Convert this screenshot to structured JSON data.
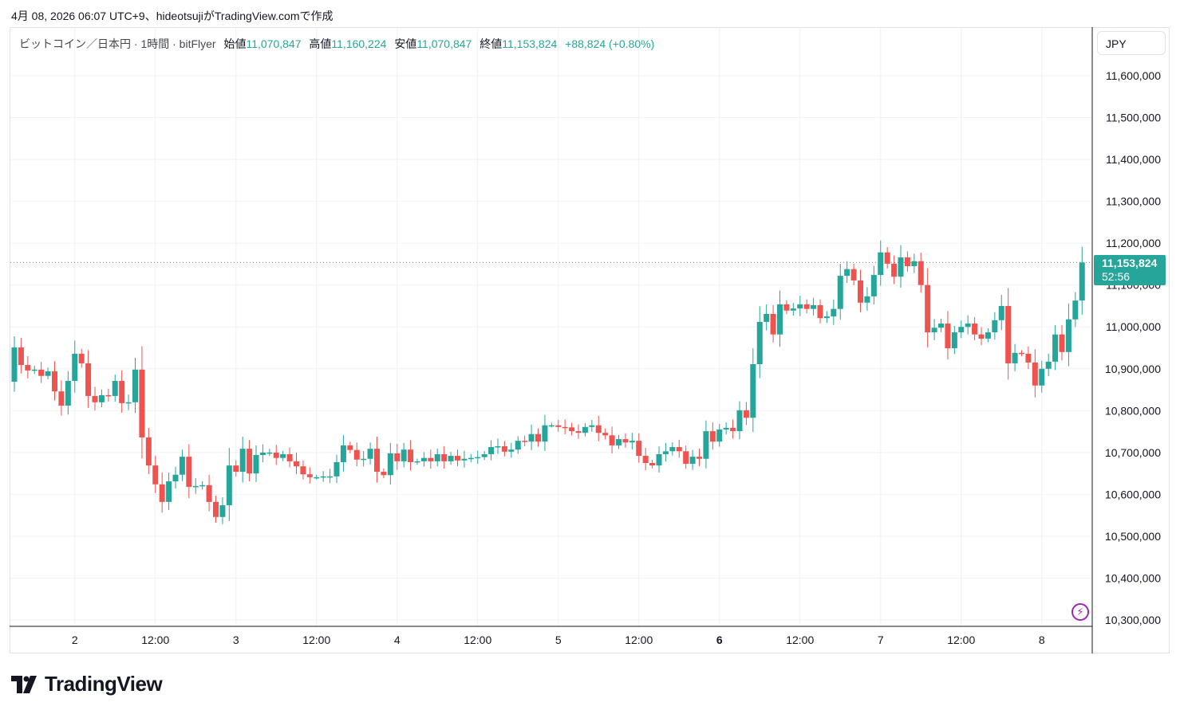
{
  "caption": "4月 08, 2026 06:07 UTC+9、hideotsujiがTradingView.comで作成",
  "legend": {
    "symbol": "ビットコイン／日本円 · 1時間 · bitFlyer",
    "open_label": "始値",
    "open": "11,070,847",
    "high_label": "高値",
    "high": "11,160,224",
    "low_label": "安値",
    "low": "11,070,847",
    "close_label": "終値",
    "close": "11,153,824",
    "change": "+88,824 (+0.80%)"
  },
  "currency_button": "JPY",
  "last_price": {
    "value": "11,153,824",
    "countdown": "52:56"
  },
  "brand": "TradingView",
  "colors": {
    "up": "#26a69a",
    "down": "#ef5350",
    "grid": "#eef2f6",
    "crosshair_line": "#26a69a"
  },
  "chart_data": {
    "type": "candlestick",
    "title": "ビットコイン／日本円 · 1時間 · bitFlyer",
    "interval": "1h",
    "unit": "JPY",
    "first_open": 10869000,
    "closes_thousands": [
      10951,
      10909,
      10896,
      10898,
      10883,
      10894,
      10846,
      10812,
      10871,
      10936,
      10913,
      10835,
      10820,
      10837,
      10835,
      10871,
      10818,
      10820,
      10898,
      10736,
      10669,
      10624,
      10582,
      10631,
      10647,
      10690,
      10618,
      10620,
      10622,
      10582,
      10546,
      10574,
      10669,
      10654,
      10709,
      10650,
      10694,
      10700,
      10700,
      10687,
      10696,
      10679,
      10667,
      10648,
      10641,
      10641,
      10643,
      10643,
      10677,
      10717,
      10706,
      10683,
      10685,
      10709,
      10654,
      10646,
      10698,
      10679,
      10707,
      10677,
      10679,
      10687,
      10679,
      10696,
      10679,
      10692,
      10681,
      10685,
      10687,
      10689,
      10696,
      10713,
      10715,
      10702,
      10707,
      10728,
      10726,
      10744,
      10726,
      10765,
      10765,
      10761,
      10760,
      10751,
      10747,
      10761,
      10765,
      10747,
      10741,
      10717,
      10732,
      10724,
      10728,
      10692,
      10675,
      10669,
      10696,
      10703,
      10713,
      10703,
      10673,
      10690,
      10685,
      10751,
      10726,
      10755,
      10759,
      10751,
      10801,
      10783,
      10911,
      11012,
      11031,
      10982,
      11054,
      11039,
      11044,
      11054,
      11043,
      11052,
      11021,
      11025,
      11043,
      11122,
      11138,
      11111,
      11058,
      11073,
      11124,
      11178,
      11151,
      11120,
      11166,
      11145,
      11157,
      11100,
      10987,
      10998,
      11008,
      10949,
      10987,
      11000,
      11008,
      10982,
      10972,
      10987,
      11016,
      11050,
      10913,
      10938,
      10936,
      10915,
      10860,
      10900,
      10917,
      10982,
      10940,
      11018,
      11063,
      11153.824
    ],
    "y_ticks": [
      "11,600,000",
      "11,500,000",
      "11,400,000",
      "11,300,000",
      "11,200,000",
      "11,100,000",
      "11,000,000",
      "10,900,000",
      "10,800,000",
      "10,700,000",
      "10,600,000",
      "10,500,000",
      "10,400,000",
      "10,300,000"
    ],
    "y_tick_values": [
      11600000,
      11500000,
      11400000,
      11300000,
      11200000,
      11100000,
      11000000,
      10900000,
      10800000,
      10700000,
      10600000,
      10500000,
      10400000,
      10300000
    ],
    "x_ticks": [
      {
        "label": "2",
        "hour": 9,
        "bold": false
      },
      {
        "label": "12:00",
        "hour": 21,
        "bold": false
      },
      {
        "label": "3",
        "hour": 33,
        "bold": false
      },
      {
        "label": "12:00",
        "hour": 45,
        "bold": false
      },
      {
        "label": "4",
        "hour": 57,
        "bold": false
      },
      {
        "label": "12:00",
        "hour": 69,
        "bold": false
      },
      {
        "label": "5",
        "hour": 81,
        "bold": false
      },
      {
        "label": "12:00",
        "hour": 93,
        "bold": false
      },
      {
        "label": "6",
        "hour": 105,
        "bold": true
      },
      {
        "label": "12:00",
        "hour": 117,
        "bold": false
      },
      {
        "label": "7",
        "hour": 129,
        "bold": false
      },
      {
        "label": "12:00",
        "hour": 141,
        "bold": false
      },
      {
        "label": "8",
        "hour": 153,
        "bold": false
      }
    ],
    "last_close": 11153824,
    "ylim": [
      10290000,
      11620000
    ]
  }
}
